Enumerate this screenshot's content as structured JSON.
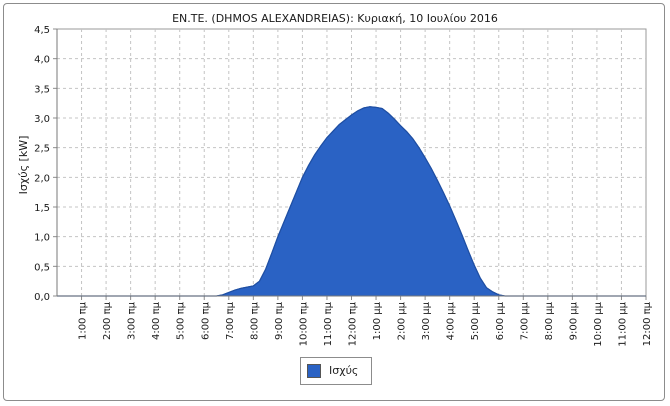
{
  "chart_data": {
    "type": "area",
    "title": "EN.TE. (DHMOS ALEXANDREIAS): Κυριακή, 10 Ιουλίου 2016",
    "xlabel": "",
    "ylabel": "Ισχύς [kW]",
    "ylim": [
      0,
      4.5
    ],
    "yticks": [
      "0,0",
      "0,5",
      "1,0",
      "1,5",
      "2,0",
      "2,5",
      "3,0",
      "3,5",
      "4,0",
      "4,5"
    ],
    "xlim": [
      0,
      24
    ],
    "xticks": [
      "1:00 πμ",
      "2:00 πμ",
      "3:00 πμ",
      "4:00 πμ",
      "5:00 πμ",
      "6:00 πμ",
      "7:00 πμ",
      "8:00 πμ",
      "9:00 πμ",
      "10:00 πμ",
      "11:00 πμ",
      "12:00 πμ",
      "1:00 μμ",
      "2:00 μμ",
      "3:00 μμ",
      "4:00 μμ",
      "5:00 μμ",
      "6:00 μμ",
      "7:00 μμ",
      "8:00 μμ",
      "9:00 μμ",
      "10:00 μμ",
      "11:00 μμ",
      "12:00 πμ"
    ],
    "grid": true,
    "legend_position": "bottom-center",
    "series": [
      {
        "name": "Ισχύς",
        "color": "#2a62c4",
        "x": [
          0,
          6.5,
          6.75,
          7.0,
          7.25,
          7.5,
          7.75,
          8.0,
          8.25,
          8.5,
          8.75,
          9.0,
          9.25,
          9.5,
          9.75,
          10.0,
          10.25,
          10.5,
          10.75,
          11.0,
          11.25,
          11.5,
          11.75,
          12.0,
          12.25,
          12.5,
          12.75,
          13.0,
          13.25,
          13.5,
          13.75,
          14.0,
          14.25,
          14.5,
          14.75,
          15.0,
          15.25,
          15.5,
          15.75,
          16.0,
          16.25,
          16.5,
          16.75,
          17.0,
          17.25,
          17.5,
          17.75,
          18.0,
          18.25,
          18.5,
          18.75,
          19.0,
          19.25,
          19.5,
          19.75,
          20.0,
          20.5,
          24
        ],
        "values": [
          0,
          0,
          0.02,
          0.06,
          0.1,
          0.13,
          0.15,
          0.17,
          0.25,
          0.45,
          0.72,
          1.0,
          1.25,
          1.5,
          1.75,
          2.0,
          2.2,
          2.38,
          2.53,
          2.67,
          2.78,
          2.89,
          2.97,
          3.05,
          3.12,
          3.17,
          3.19,
          3.18,
          3.16,
          3.08,
          2.98,
          2.87,
          2.77,
          2.65,
          2.5,
          2.33,
          2.15,
          1.95,
          1.74,
          1.52,
          1.28,
          1.03,
          0.77,
          0.52,
          0.3,
          0.14,
          0.07,
          0.02,
          0,
          0,
          0,
          0,
          0,
          0,
          0,
          0,
          0,
          0
        ]
      }
    ]
  }
}
